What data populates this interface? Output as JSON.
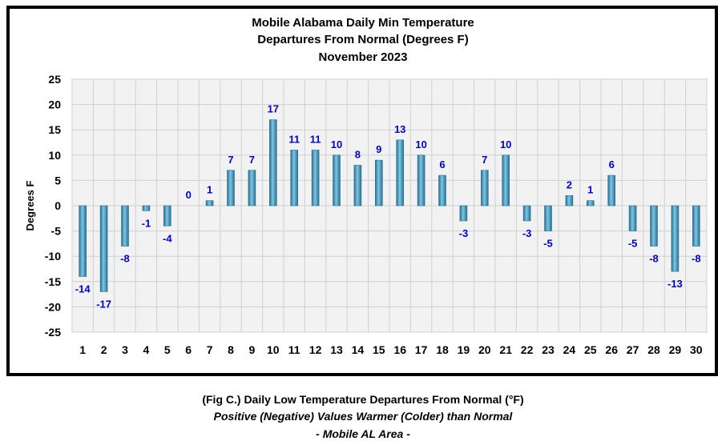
{
  "chart_data": {
    "type": "bar",
    "title_lines": [
      "Mobile Alabama Daily Min Temperature",
      "Departures From Normal (Degrees F)",
      "November 2023"
    ],
    "xlabel": "",
    "ylabel": "Degrees F",
    "ylim": [
      -25,
      25
    ],
    "yticks": [
      25,
      20,
      15,
      10,
      5,
      0,
      -5,
      -10,
      -15,
      -20,
      -25
    ],
    "grid": true,
    "legend": "none",
    "categories": [
      "1",
      "2",
      "3",
      "4",
      "5",
      "6",
      "7",
      "8",
      "9",
      "10",
      "11",
      "12",
      "13",
      "14",
      "15",
      "16",
      "17",
      "18",
      "19",
      "20",
      "21",
      "22",
      "23",
      "24",
      "25",
      "26",
      "27",
      "28",
      "29",
      "30"
    ],
    "values": [
      -14,
      -17,
      -8,
      -1,
      -4,
      0,
      1,
      7,
      7,
      17,
      11,
      11,
      10,
      8,
      9,
      13,
      10,
      6,
      -3,
      7,
      10,
      -3,
      -5,
      2,
      1,
      6,
      -5,
      -8,
      -13,
      -8
    ],
    "colors": {
      "bar": "#4aa3c8",
      "bar_dark": "#2a6f8f",
      "label": "#0000cc",
      "plot_bg": "#f2f2f2",
      "grid": "#d0d0d0"
    }
  },
  "caption": {
    "line1": "(Fig C.) Daily Low Temperature Departures From Normal (°F)",
    "line2": "Positive (Negative) Values Warmer (Colder) than Normal",
    "line3": "- Mobile AL Area -"
  }
}
